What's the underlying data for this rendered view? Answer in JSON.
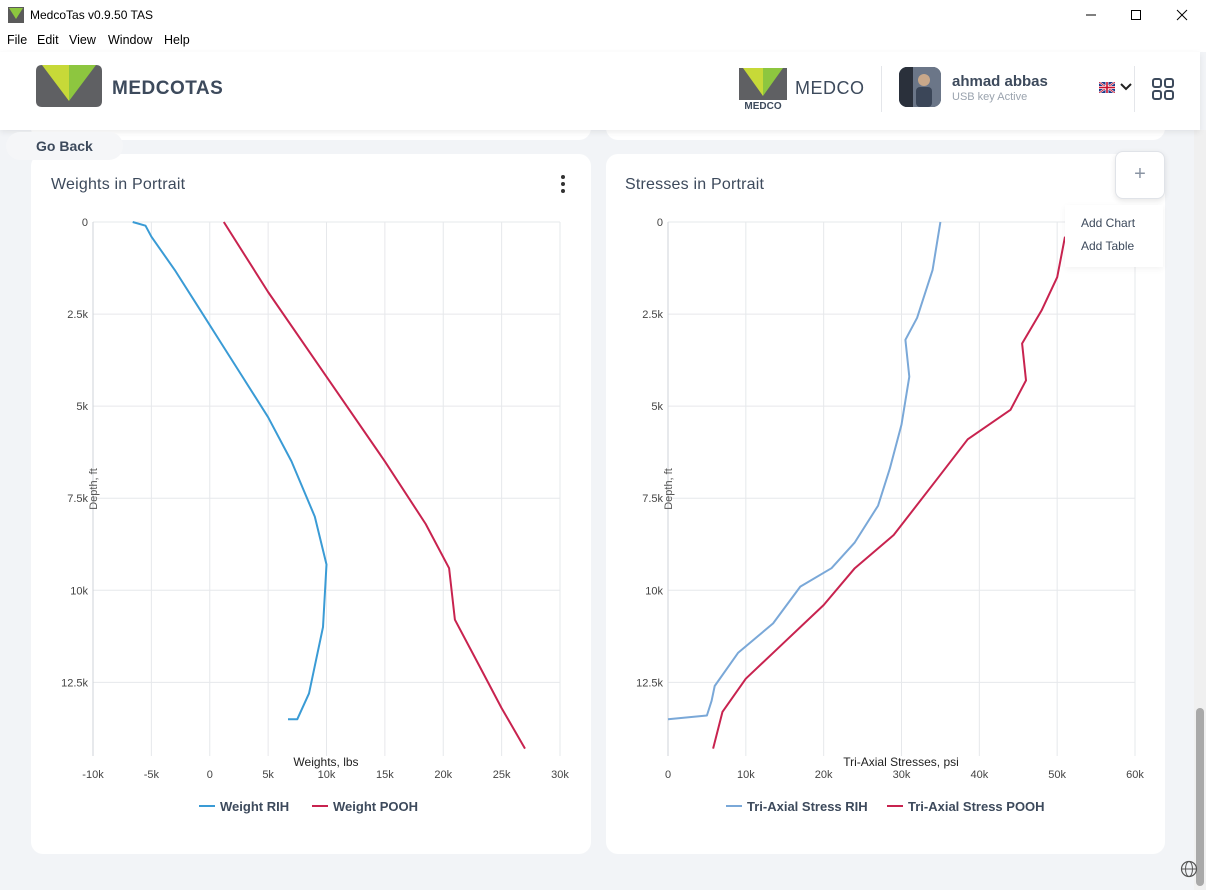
{
  "window": {
    "title": "MedcoTas v0.9.50  TAS",
    "menu": [
      "File",
      "Edit",
      "View",
      "Window",
      "Help"
    ]
  },
  "header": {
    "brand": "MEDCOTAS",
    "partner": "MEDCO",
    "partner_logo_text": "MEDCO",
    "user_name": "ahmad abbas",
    "user_status": "USB key Active"
  },
  "nav": {
    "go_back": "Go Back"
  },
  "card_menu": {
    "items": [
      "Add Chart",
      "Add Table"
    ],
    "plus": "+"
  },
  "colors": {
    "rih": "#3a9bd5",
    "pooh": "#c8234f",
    "rih2": "#7aa8d8",
    "accent": "#8dc63f"
  },
  "charts": [
    {
      "title": "Weights in Portrait",
      "chart_data": {
        "type": "line",
        "xlabel": "Weights, lbs",
        "ylabel": "Depth, ft",
        "xlim": [
          -10000,
          30000
        ],
        "ylim": [
          0,
          14500
        ],
        "y_inverted": true,
        "grid": true,
        "legend_position": "bottom-center",
        "x_ticks": [
          "-10k",
          "-5k",
          "0",
          "5k",
          "10k",
          "15k",
          "20k",
          "25k",
          "30k"
        ],
        "y_ticks": [
          "0",
          "2.5k",
          "5k",
          "7.5k",
          "10k",
          "12.5k"
        ],
        "series": [
          {
            "name": "Weight RIH",
            "points": [
              [
                -6600,
                0
              ],
              [
                -5500,
                100
              ],
              [
                -5000,
                400
              ],
              [
                -3000,
                1300
              ],
              [
                -1000,
                2300
              ],
              [
                1000,
                3300
              ],
              [
                3000,
                4300
              ],
              [
                5000,
                5300
              ],
              [
                7000,
                6500
              ],
              [
                9000,
                8000
              ],
              [
                10000,
                9300
              ],
              [
                9700,
                11000
              ],
              [
                8500,
                12800
              ],
              [
                7500,
                13500
              ],
              [
                6700,
                13500
              ]
            ]
          },
          {
            "name": "Weight POOH",
            "points": [
              [
                1200,
                0
              ],
              [
                5000,
                1900
              ],
              [
                10000,
                4200
              ],
              [
                15000,
                6500
              ],
              [
                18500,
                8200
              ],
              [
                20500,
                9400
              ],
              [
                21000,
                10800
              ],
              [
                23000,
                12000
              ],
              [
                25000,
                13200
              ],
              [
                27000,
                14300
              ]
            ]
          }
        ]
      }
    },
    {
      "title": "Stresses in Portrait",
      "chart_data": {
        "type": "line",
        "xlabel": "Tri-Axial Stresses, psi",
        "ylabel": "Depth, ft",
        "xlim": [
          0,
          60000
        ],
        "ylim": [
          0,
          14500
        ],
        "y_inverted": true,
        "grid": true,
        "legend_position": "bottom-center",
        "x_ticks": [
          "0",
          "10k",
          "20k",
          "30k",
          "40k",
          "50k",
          "60k"
        ],
        "y_ticks": [
          "0",
          "2.5k",
          "5k",
          "7.5k",
          "10k",
          "12.5k"
        ],
        "series": [
          {
            "name": "Tri-Axial Stress RIH",
            "points": [
              [
                35000,
                0
              ],
              [
                34000,
                1300
              ],
              [
                32000,
                2600
              ],
              [
                30500,
                3200
              ],
              [
                31000,
                4200
              ],
              [
                30000,
                5500
              ],
              [
                28500,
                6700
              ],
              [
                27000,
                7700
              ],
              [
                24000,
                8700
              ],
              [
                21000,
                9400
              ],
              [
                17000,
                9900
              ],
              [
                13500,
                10900
              ],
              [
                9000,
                11700
              ],
              [
                6000,
                12600
              ],
              [
                5600,
                13000
              ],
              [
                5000,
                13400
              ],
              [
                0,
                13500
              ]
            ]
          },
          {
            "name": "Tri-Axial Stress POOH",
            "points": [
              [
                51000,
                400
              ],
              [
                50000,
                1500
              ],
              [
                48000,
                2400
              ],
              [
                45500,
                3300
              ],
              [
                46000,
                4300
              ],
              [
                44000,
                5100
              ],
              [
                38500,
                5900
              ],
              [
                34500,
                7000
              ],
              [
                29000,
                8500
              ],
              [
                24000,
                9400
              ],
              [
                20000,
                10400
              ],
              [
                15000,
                11400
              ],
              [
                10000,
                12400
              ],
              [
                7000,
                13300
              ],
              [
                5800,
                14300
              ]
            ]
          }
        ]
      }
    }
  ]
}
